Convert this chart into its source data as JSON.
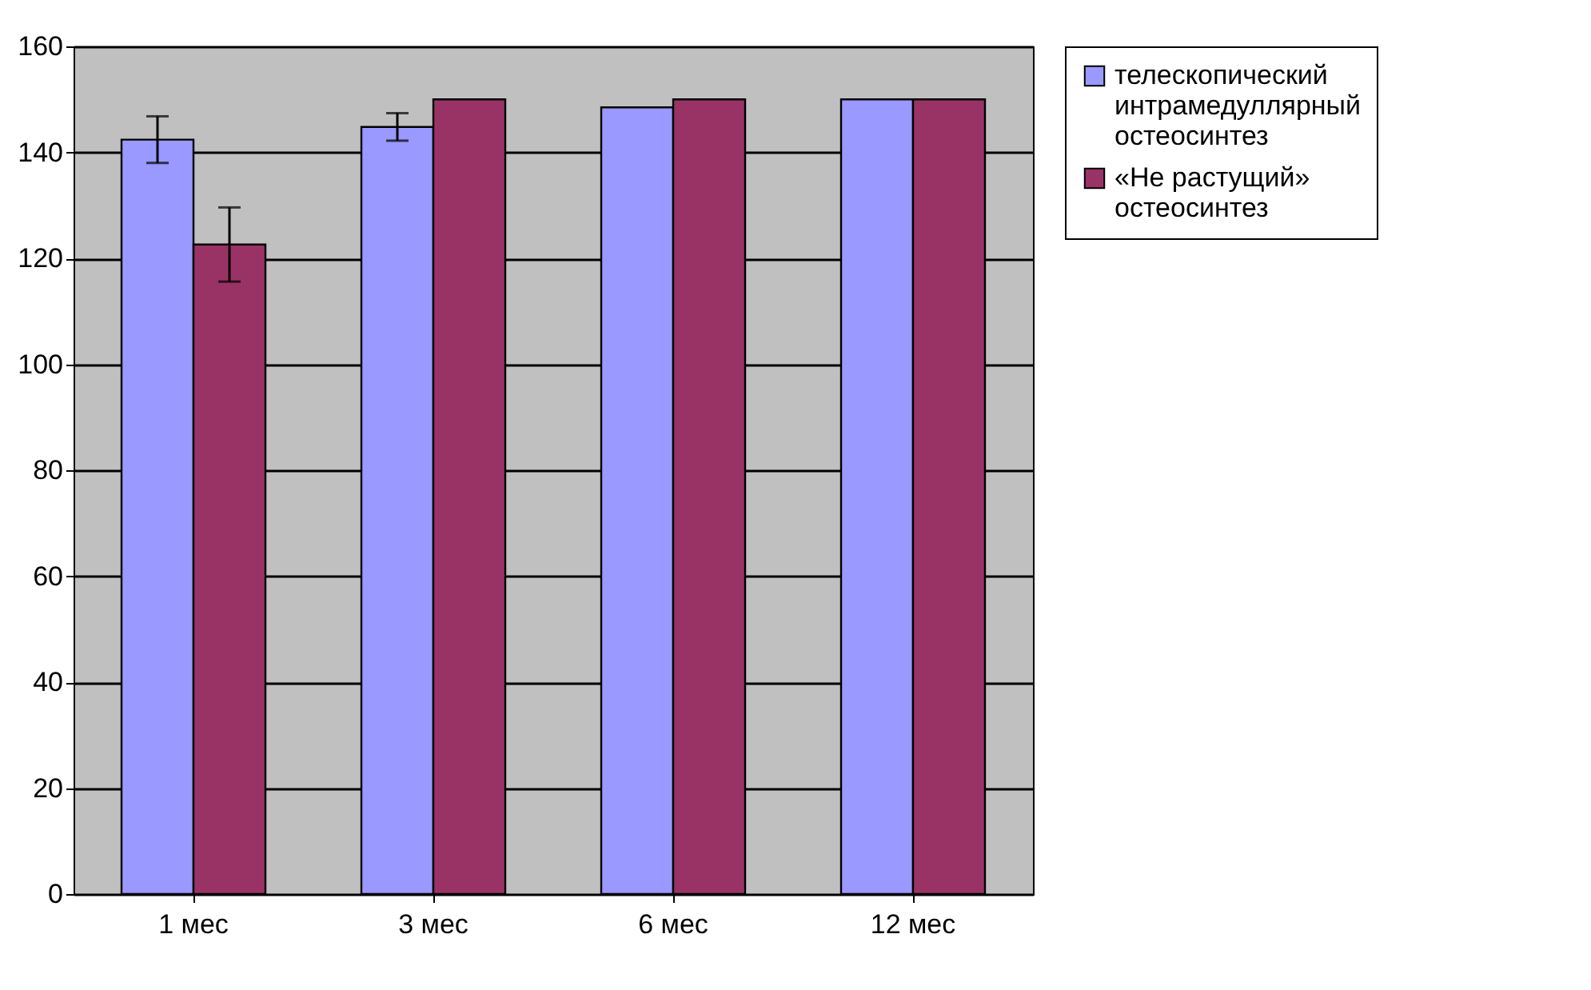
{
  "chart_data": {
    "type": "bar",
    "categories": [
      "1 мес",
      "3 мес",
      "6 мес",
      "12 мес"
    ],
    "series": [
      {
        "name": "телескопический интрамедуллярный остеосинтез",
        "color": "#9999ff",
        "values": [
          142.4,
          144.8,
          148.5,
          150
        ],
        "errors": [
          4.4,
          2.6,
          null,
          null
        ]
      },
      {
        "name": "«Не растущий» остеосинтез",
        "color": "#993366",
        "values": [
          122.6,
          150,
          150,
          150
        ],
        "errors": [
          7,
          null,
          null,
          null
        ]
      }
    ],
    "ylim": [
      0,
      160
    ],
    "yticks": [
      0,
      20,
      40,
      60,
      80,
      100,
      120,
      140,
      160
    ],
    "grid": "y",
    "legend": "right"
  }
}
